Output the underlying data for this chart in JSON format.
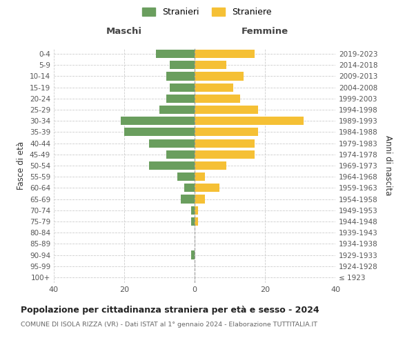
{
  "age_groups": [
    "100+",
    "95-99",
    "90-94",
    "85-89",
    "80-84",
    "75-79",
    "70-74",
    "65-69",
    "60-64",
    "55-59",
    "50-54",
    "45-49",
    "40-44",
    "35-39",
    "30-34",
    "25-29",
    "20-24",
    "15-19",
    "10-14",
    "5-9",
    "0-4"
  ],
  "birth_years": [
    "≤ 1923",
    "1924-1928",
    "1929-1933",
    "1934-1938",
    "1939-1943",
    "1944-1948",
    "1949-1953",
    "1954-1958",
    "1959-1963",
    "1964-1968",
    "1969-1973",
    "1974-1978",
    "1979-1983",
    "1984-1988",
    "1989-1993",
    "1994-1998",
    "1999-2003",
    "2004-2008",
    "2009-2013",
    "2014-2018",
    "2019-2023"
  ],
  "maschi": [
    0,
    0,
    1,
    0,
    0,
    1,
    1,
    4,
    3,
    5,
    13,
    8,
    13,
    20,
    21,
    10,
    8,
    7,
    8,
    7,
    11
  ],
  "femmine": [
    0,
    0,
    0,
    0,
    0,
    1,
    1,
    3,
    7,
    3,
    9,
    17,
    17,
    18,
    31,
    18,
    13,
    11,
    14,
    9,
    17
  ],
  "maschi_color": "#6a9e5e",
  "femmine_color": "#f5c035",
  "center_line_color": "#999999",
  "grid_color": "#cccccc",
  "bg_color": "#ffffff",
  "title": "Popolazione per cittadinanza straniera per età e sesso - 2024",
  "subtitle": "COMUNE DI ISOLA RIZZA (VR) - Dati ISTAT al 1° gennaio 2024 - Elaborazione TUTTITALIA.IT",
  "xlabel_left": "Maschi",
  "xlabel_right": "Femmine",
  "ylabel_left": "Fasce di età",
  "ylabel_right": "Anni di nascita",
  "legend_maschi": "Stranieri",
  "legend_femmine": "Straniere",
  "xlim": 40
}
